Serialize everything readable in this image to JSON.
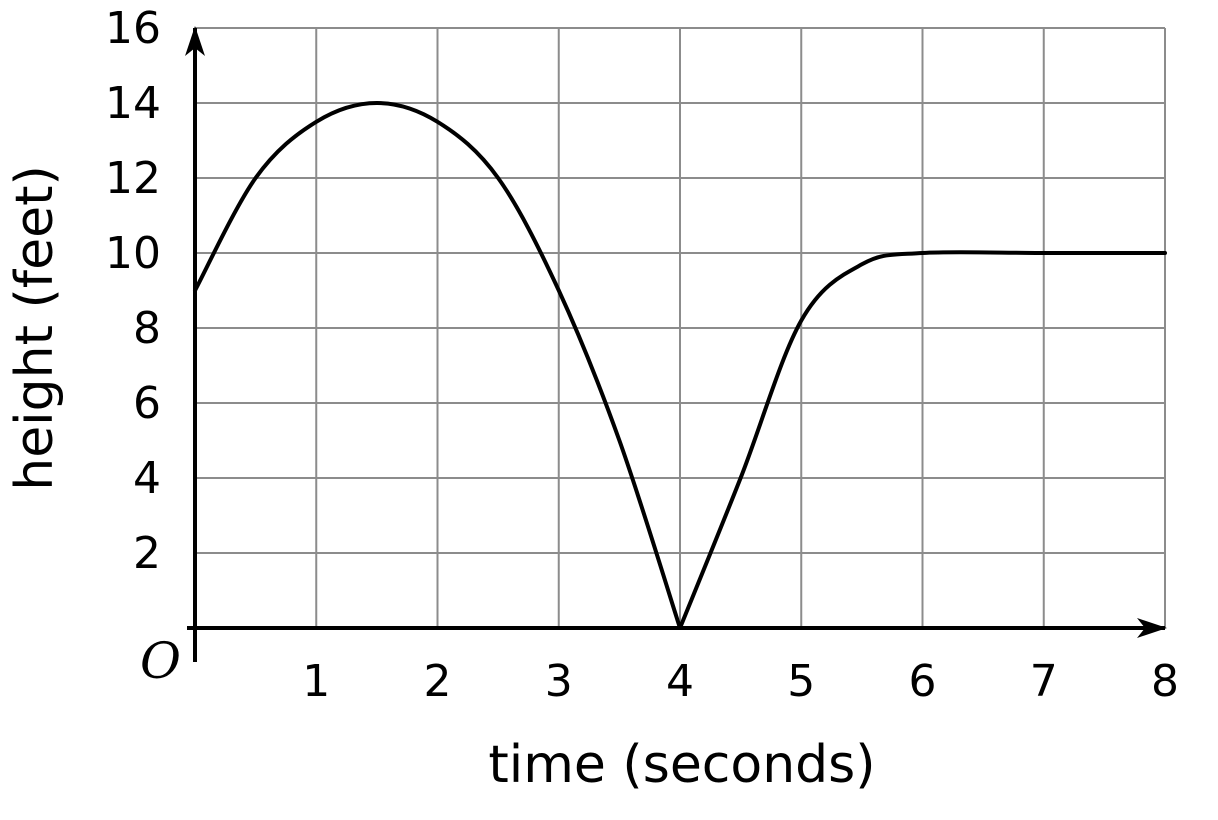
{
  "chart_data": {
    "type": "line",
    "xlabel": "time (seconds)",
    "ylabel": "height (feet)",
    "origin_label": "O",
    "xlim": [
      0,
      8
    ],
    "ylim": [
      0,
      16
    ],
    "x_ticks": [
      1,
      2,
      3,
      4,
      5,
      6,
      7,
      8
    ],
    "y_ticks": [
      2,
      4,
      6,
      8,
      10,
      12,
      14,
      16
    ],
    "grid": true,
    "series": [
      {
        "x": [
          0,
          0.5,
          1,
          1.5,
          2,
          2.5,
          3,
          3.5,
          4,
          4.5,
          5,
          5.5,
          6,
          7,
          8
        ],
        "y": [
          9,
          12,
          13.5,
          14,
          13.5,
          12,
          9,
          5,
          0,
          4,
          8.2,
          9.7,
          10,
          10,
          10
        ]
      }
    ]
  }
}
